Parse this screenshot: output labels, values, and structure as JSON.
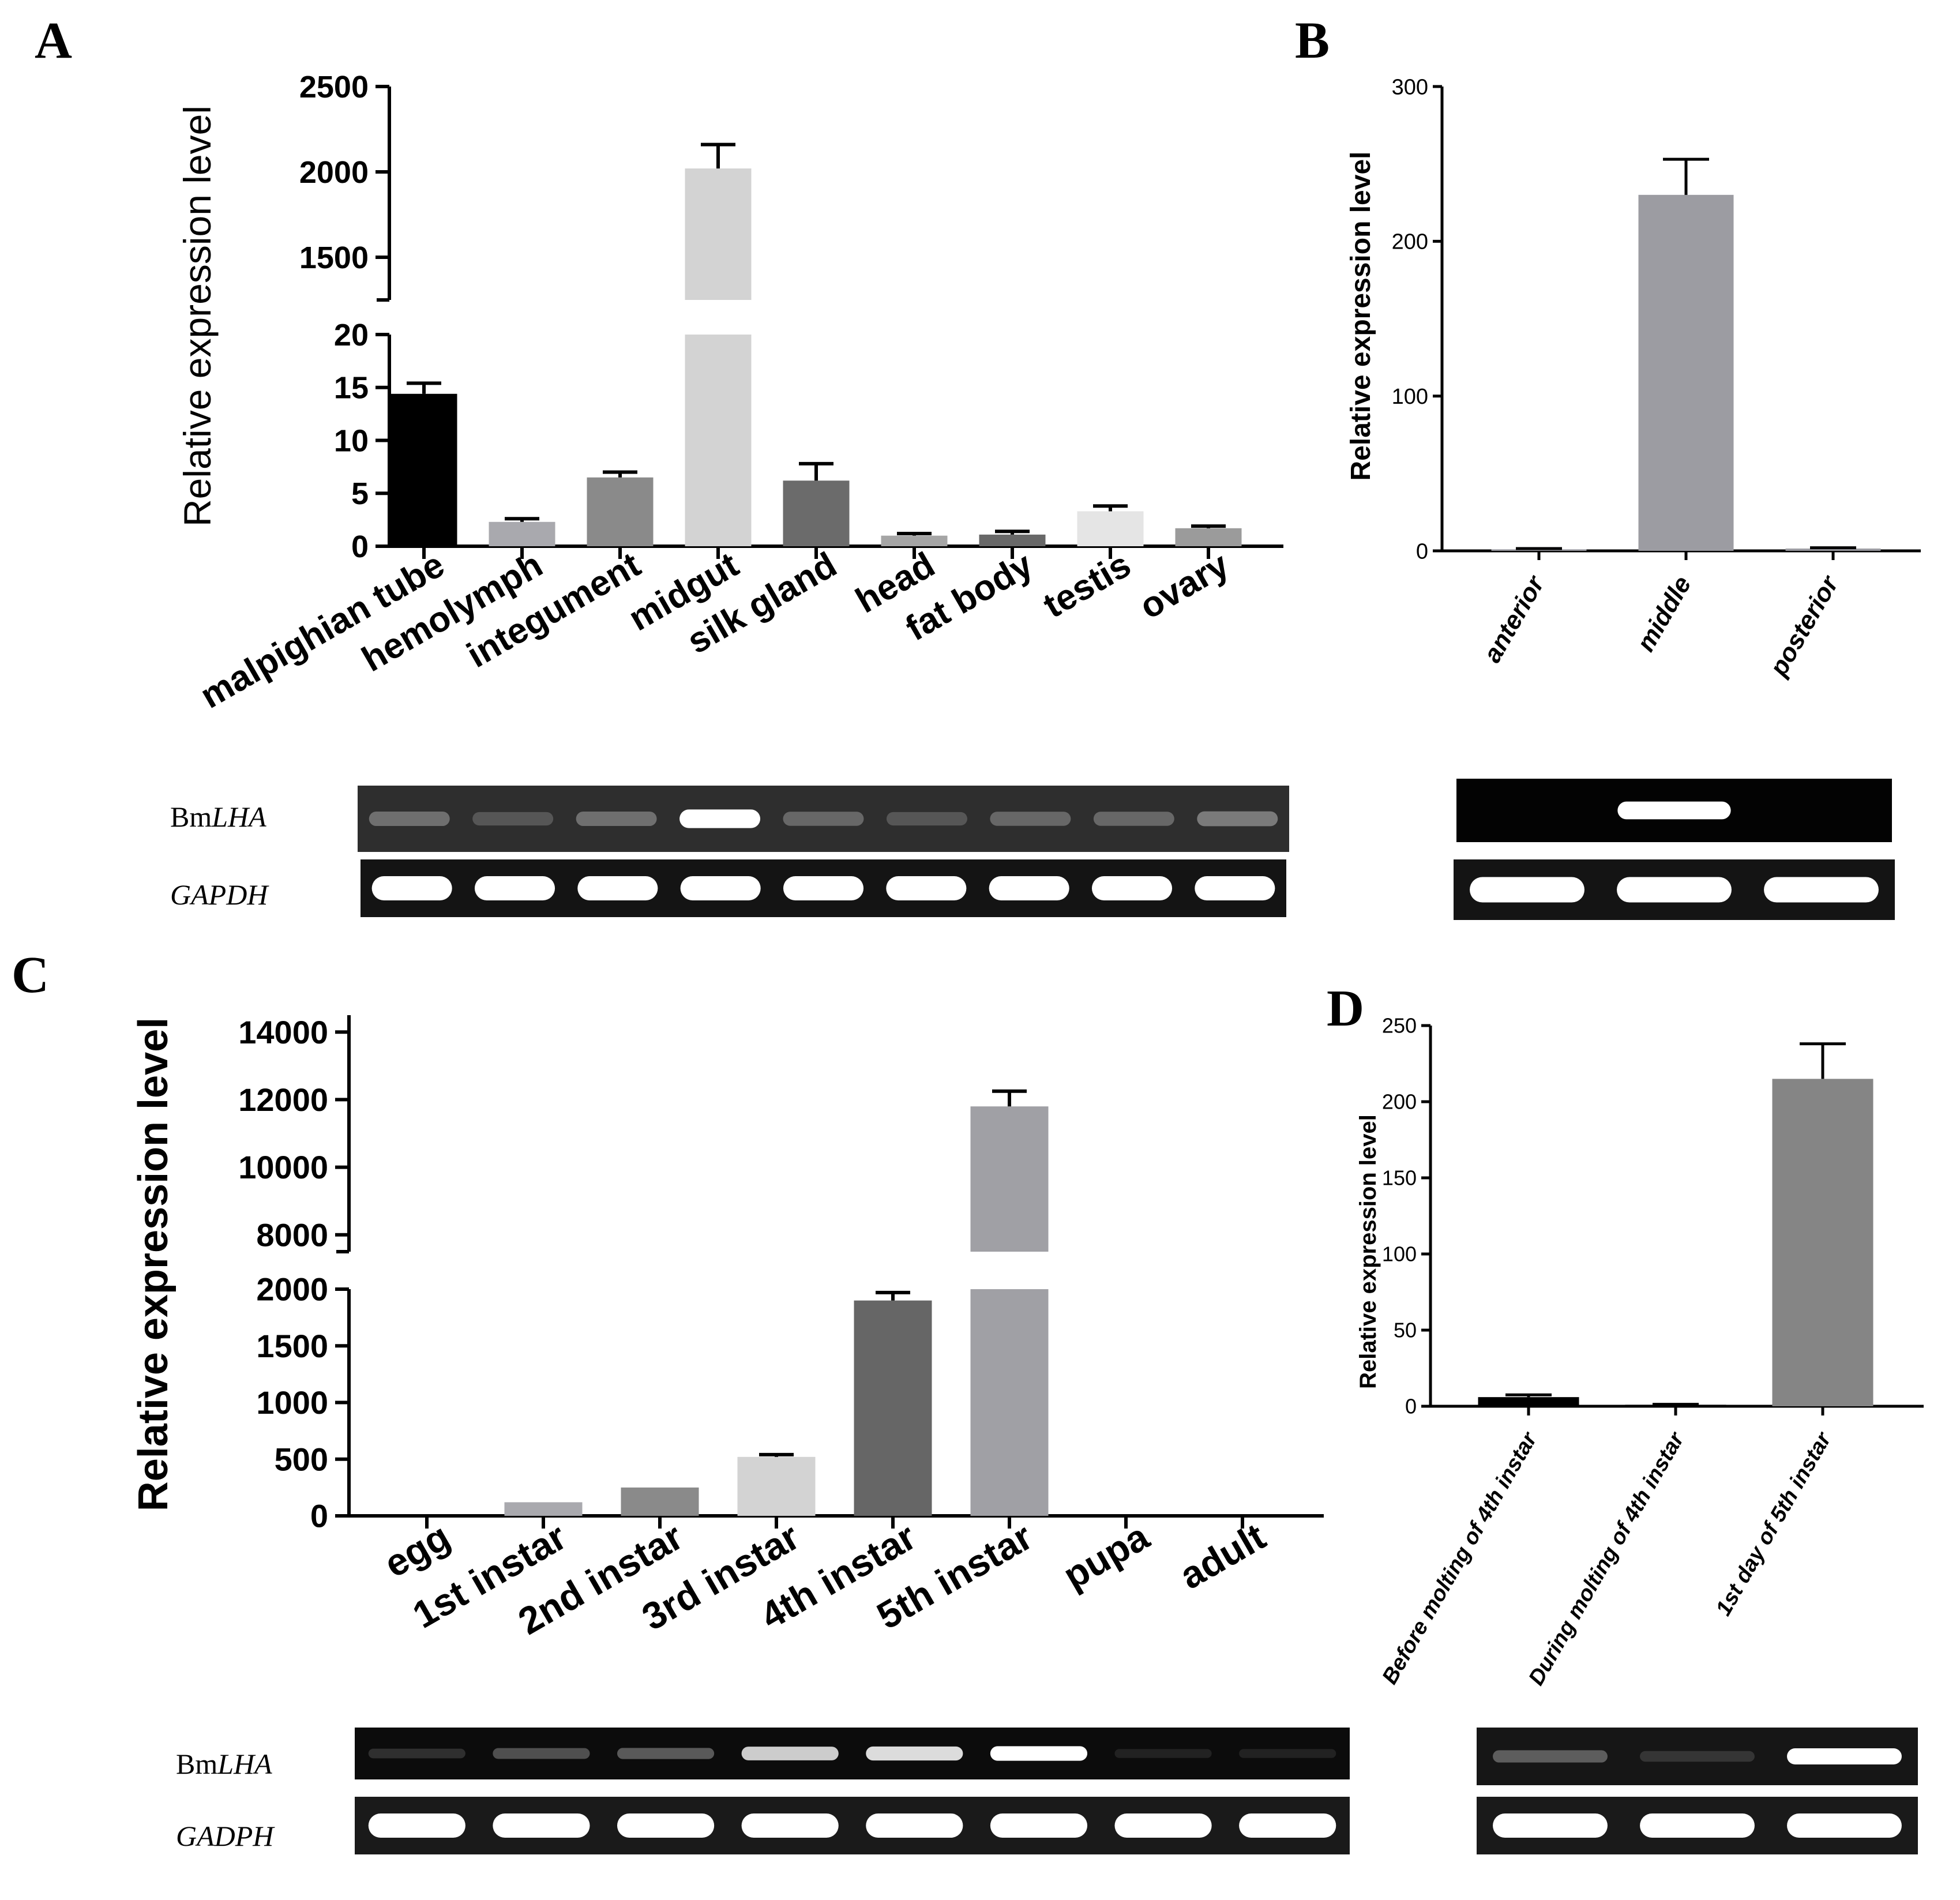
{
  "panel_labels": [
    "A",
    "B",
    "C",
    "D"
  ],
  "gel_labels": {
    "A_top": "BmLHA",
    "A_bottom": "GAPDH",
    "C_top": "BmLHA",
    "C_bottom": "GADPH"
  },
  "chart_data": [
    {
      "panel": "A",
      "type": "bar",
      "ylabel": "Relative expression level",
      "xlabel": "",
      "categories": [
        "malpighian tube",
        "hemolymph",
        "integument",
        "midgut",
        "silk gland",
        "head",
        "fat body",
        "testis",
        "ovary"
      ],
      "values": [
        14.4,
        2.3,
        6.5,
        2020,
        6.2,
        1.0,
        1.1,
        3.3,
        1.7
      ],
      "errors": [
        1.0,
        0.3,
        0.5,
        140,
        1.6,
        0.2,
        0.3,
        0.5,
        0.2
      ],
      "colors": [
        "#000000",
        "#a9a9ae",
        "#8a8a8a",
        "#d3d3d3",
        "#6b6b6b",
        "#a5a5a5",
        "#686868",
        "#e5e5e5",
        "#9b9b9b"
      ],
      "axis_break": true,
      "ylim_lower": [
        0,
        20
      ],
      "ylim_upper": [
        1250,
        2500
      ],
      "yticks_lower": [
        "0",
        "5",
        "10",
        "15",
        "20"
      ],
      "yticks_upper": [
        "1500",
        "2000",
        "2500"
      ],
      "gel_bands": {
        "BmLHA": [
          0.45,
          0.3,
          0.45,
          1.0,
          0.4,
          0.3,
          0.4,
          0.4,
          0.5
        ],
        "GAPDH": [
          1.0,
          1.0,
          1.0,
          1.0,
          1.0,
          1.0,
          1.0,
          1.0,
          1.0
        ]
      }
    },
    {
      "panel": "B",
      "type": "bar",
      "ylabel": "Relative expression level",
      "xlabel": "",
      "categories": [
        "anterior",
        "middle",
        "posterior"
      ],
      "values": [
        1,
        230,
        1.5
      ],
      "errors": [
        0.5,
        23,
        0.5
      ],
      "colors": [
        "#9c9ca2",
        "#9c9ca2",
        "#9c9ca2"
      ],
      "ylim": [
        0,
        300
      ],
      "yticks": [
        "0",
        "100",
        "200",
        "300"
      ],
      "gel_bands": {
        "top": [
          0,
          1.0,
          0
        ],
        "bottom": [
          1.0,
          1.0,
          1.0
        ]
      }
    },
    {
      "panel": "C",
      "type": "bar",
      "ylabel": "Relative expression level",
      "xlabel": "",
      "categories": [
        "egg",
        "1st instar",
        "2nd instar",
        "3rd instar",
        "4th instar",
        "5th instar",
        "pupa",
        "adult"
      ],
      "values": [
        2,
        120,
        250,
        520,
        1900,
        11800,
        1,
        1
      ],
      "errors": [
        0,
        0,
        0,
        20,
        70,
        450,
        0,
        0
      ],
      "colors": [
        "#000000",
        "#a9a9ae",
        "#8a8a8a",
        "#d3d3d3",
        "#666666",
        "#a0a0a5",
        "#888888",
        "#888888"
      ],
      "axis_break": true,
      "ylim_lower": [
        0,
        2000
      ],
      "ylim_upper": [
        7500,
        14500
      ],
      "yticks_lower": [
        "0",
        "500",
        "1000",
        "1500",
        "2000"
      ],
      "yticks_upper": [
        "8000",
        "10000",
        "12000",
        "14000"
      ],
      "gel_bands": {
        "BmLHA": [
          0.15,
          0.35,
          0.4,
          0.85,
          0.9,
          1.0,
          0.05,
          0.05
        ],
        "GADPH": [
          1.0,
          1.0,
          1.0,
          1.0,
          1.0,
          1.0,
          1.0,
          1.0
        ]
      }
    },
    {
      "panel": "D",
      "type": "bar",
      "ylabel": "Relative expression level",
      "xlabel": "",
      "categories": [
        "Before molting of 4th instar",
        "During molting of 4th instar",
        "1st day of 5th instar"
      ],
      "values": [
        6,
        1,
        215
      ],
      "errors": [
        1.5,
        0.3,
        23
      ],
      "colors": [
        "#000000",
        "#000000",
        "#858585"
      ],
      "ylim": [
        0,
        250
      ],
      "yticks": [
        "0",
        "50",
        "100",
        "150",
        "200",
        "250"
      ],
      "gel_bands": {
        "top": [
          0.4,
          0.15,
          1.0
        ],
        "bottom": [
          1.0,
          1.0,
          1.0
        ]
      }
    }
  ]
}
